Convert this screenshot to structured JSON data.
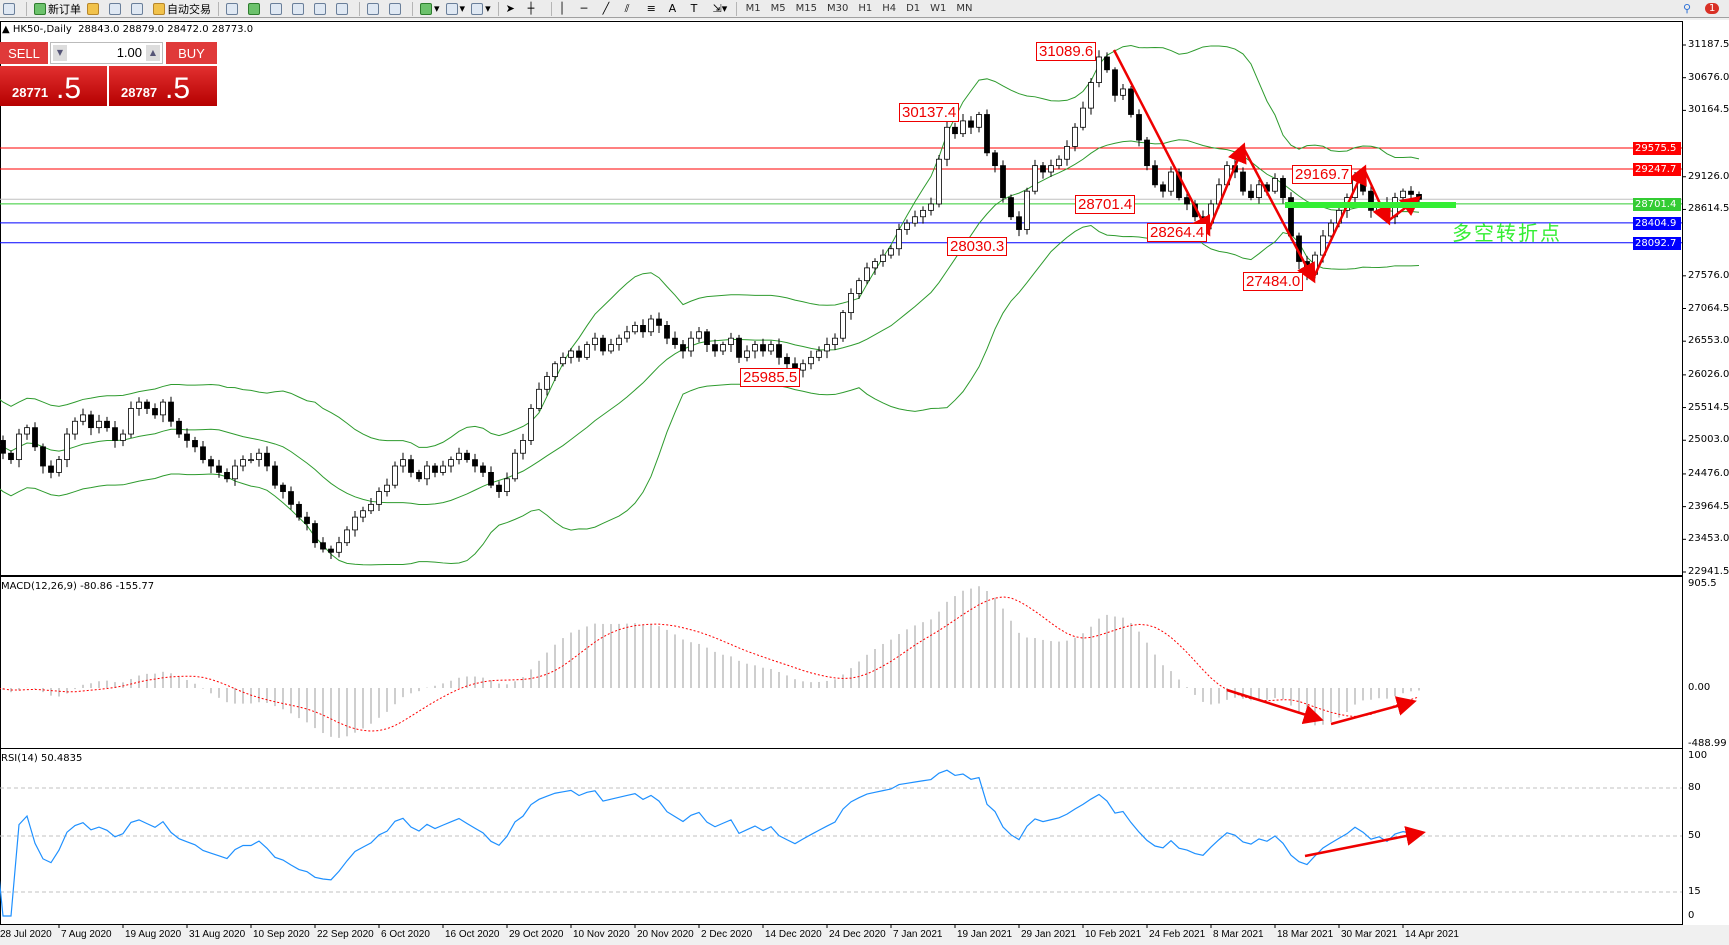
{
  "toolbar": {
    "new_order": "新订单",
    "auto_trading": "自动交易",
    "timeframes": [
      "M1",
      "M5",
      "M15",
      "M30",
      "H1",
      "H4",
      "D1",
      "W1",
      "MN"
    ],
    "notification_count": "1"
  },
  "header": {
    "symbol": "HK50-,Daily",
    "ohlc": "28843.0 28879.0 28472.0 28773.0"
  },
  "trade_panel": {
    "sell_label": "SELL",
    "buy_label": "BUY",
    "lot": "1.00",
    "sell_price_main": "28771",
    "sell_price_big": ".5",
    "buy_price_main": "28787",
    "buy_price_big": ".5"
  },
  "price_axis": [
    "31187.5",
    "30676.0",
    "30164.5",
    "29126.0",
    "28614.5",
    "27576.0",
    "27064.5",
    "26553.0",
    "26026.0",
    "25514.5",
    "25003.0",
    "24476.0",
    "23964.5",
    "23453.0",
    "22941.5"
  ],
  "hlines": [
    {
      "value": "29575.5",
      "color": "#ff0000"
    },
    {
      "value": "29247.7",
      "color": "#ff0000"
    },
    {
      "value": "28701.4",
      "color": "#33cc33"
    },
    {
      "value": "28404.9",
      "color": "#0000ff"
    },
    {
      "value": "28092.7",
      "color": "#0000ff"
    }
  ],
  "annotations": {
    "high1": "31089.6",
    "high2": "30137.4",
    "high3": "29169.7",
    "mid1": "28701.4",
    "low1": "28264.4",
    "low2": "28030.3",
    "low3": "27484.0",
    "low4": "25985.5",
    "pivot_text": "多空转折点"
  },
  "macd": {
    "label": "MACD(12,26,9) -80.86 -155.77",
    "axis": [
      "905.5",
      "0.00",
      "-488.99"
    ]
  },
  "rsi": {
    "label": "RSI(14) 50.4835",
    "axis": [
      "100",
      "80",
      "50",
      "15",
      "0"
    ]
  },
  "colors": {
    "bands": "#2e9b2e",
    "rsi": "#1e90ff",
    "signal": "#ff0000",
    "histogram": "#b4b4b4",
    "annotation": "#ee0000",
    "pivot": "#33ee33"
  },
  "chart_data": {
    "type": "candlestick",
    "dates": [
      "28 Jul 2020",
      "7 Aug 2020",
      "19 Aug 2020",
      "31 Aug 2020",
      "10 Sep 2020",
      "22 Sep 2020",
      "6 Oct 2020",
      "16 Oct 2020",
      "29 Oct 2020",
      "10 Nov 2020",
      "20 Nov 2020",
      "2 Dec 2020",
      "14 Dec 2020",
      "24 Dec 2020",
      "7 Jan 2021",
      "19 Jan 2021",
      "29 Jan 2021",
      "10 Feb 2021",
      "24 Feb 2021",
      "8 Mar 2021",
      "18 Mar 2021",
      "30 Mar 2021",
      "14 Apr 2021"
    ],
    "ylim": [
      22941.5,
      31187.5
    ],
    "closes": [
      25000,
      24800,
      24700,
      25100,
      25200,
      24900,
      24600,
      24500,
      24700,
      25100,
      25300,
      25400,
      25200,
      25300,
      25200,
      25000,
      25100,
      25500,
      25600,
      25500,
      25400,
      25600,
      25300,
      25100,
      25000,
      24900,
      24700,
      24600,
      24500,
      24400,
      24600,
      24700,
      24700,
      24800,
      24600,
      24300,
      24200,
      24000,
      23800,
      23700,
      23400,
      23300,
      23250,
      23400,
      23600,
      23800,
      23900,
      24000,
      24200,
      24300,
      24600,
      24700,
      24500,
      24400,
      24600,
      24500,
      24600,
      24700,
      24800,
      24700,
      24600,
      24500,
      24300,
      24200,
      24400,
      24800,
      25000,
      25500,
      25800,
      26000,
      26200,
      26300,
      26400,
      26300,
      26500,
      26600,
      26400,
      26500,
      26600,
      26700,
      26800,
      26700,
      26900,
      26800,
      26600,
      26500,
      26400,
      26600,
      26700,
      26500,
      26400,
      26500,
      26600,
      26300,
      26400,
      26500,
      26400,
      26500,
      26300,
      26200,
      26100,
      26200,
      26300,
      26400,
      26500,
      26600,
      27000,
      27300,
      27500,
      27700,
      27800,
      27900,
      28000,
      28300,
      28400,
      28500,
      28600,
      28700,
      29400,
      29900,
      29800,
      30000,
      29900,
      30100,
      29500,
      29300,
      28800,
      28500,
      28300,
      28900,
      29300,
      29200,
      29300,
      29400,
      29600,
      29900,
      30200,
      30600,
      31000,
      30800,
      30400,
      30500,
      30100,
      29700,
      29300,
      29000,
      28900,
      29200,
      28800,
      28700,
      28500,
      28400,
      28700,
      29000,
      29300,
      29200,
      28900,
      28800,
      29000,
      28900,
      29100,
      28800,
      28200,
      27800,
      27600,
      27900,
      28200,
      28400,
      28600,
      28800,
      29100,
      28900,
      28600,
      28700,
      28500,
      28800,
      28900,
      28850,
      28773
    ]
  }
}
